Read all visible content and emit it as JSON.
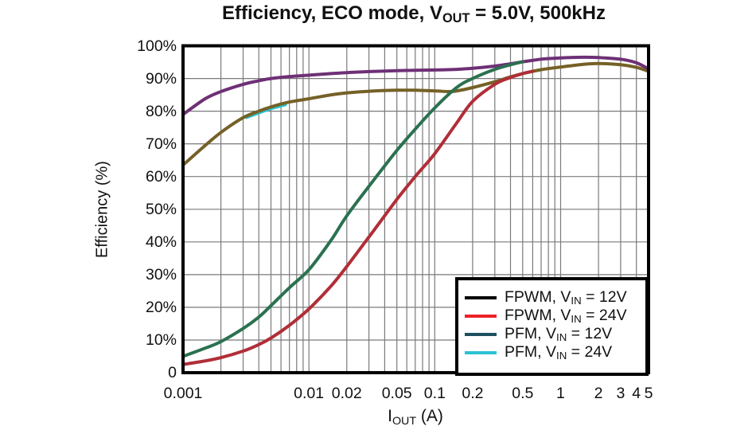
{
  "title": {
    "pre": "Efficiency, ECO mode, V",
    "sub": "OUT",
    "post": " = 5.0V, 500kHz"
  },
  "axes": {
    "x": {
      "label_pre": "I",
      "label_sub": "OUT",
      "label_post": " (A)",
      "scale": "log",
      "min": 0.001,
      "max": 5,
      "tick_labels": [
        {
          "value": 0.001,
          "label": "0.001"
        },
        {
          "value": 0.01,
          "label": "0.01"
        },
        {
          "value": 0.02,
          "label": "0.02"
        },
        {
          "value": 0.05,
          "label": "0.05"
        },
        {
          "value": 0.1,
          "label": "0.1"
        },
        {
          "value": 0.2,
          "label": "0.2"
        },
        {
          "value": 0.5,
          "label": "0.5"
        },
        {
          "value": 1,
          "label": "1"
        },
        {
          "value": 2,
          "label": "2"
        },
        {
          "value": 3,
          "label": "3"
        },
        {
          "value": 4,
          "label": "4"
        },
        {
          "value": 5,
          "label": "5"
        }
      ],
      "gridlines": [
        0.002,
        0.003,
        0.004,
        0.005,
        0.006,
        0.007,
        0.008,
        0.009,
        0.01,
        0.02,
        0.03,
        0.04,
        0.05,
        0.06,
        0.07,
        0.08,
        0.09,
        0.1,
        0.2,
        0.3,
        0.4,
        0.5,
        0.6,
        0.7,
        0.8,
        0.9,
        1,
        2,
        3,
        4
      ]
    },
    "y": {
      "label": "Efficiency (%)",
      "min": 0,
      "max": 100,
      "tick_labels": [
        {
          "value": 100,
          "label": "100%"
        },
        {
          "value": 90,
          "label": "90%"
        },
        {
          "value": 80,
          "label": "80%"
        },
        {
          "value": 70,
          "label": "70%"
        },
        {
          "value": 60,
          "label": "60%"
        },
        {
          "value": 50,
          "label": "50%"
        },
        {
          "value": 40,
          "label": "40%"
        },
        {
          "value": 30,
          "label": "30%"
        },
        {
          "value": 20,
          "label": "20%"
        },
        {
          "value": 10,
          "label": "10%"
        },
        {
          "value": 0,
          "label": "0"
        }
      ],
      "gridlines": [
        10,
        20,
        30,
        40,
        50,
        60,
        70,
        80,
        90
      ]
    }
  },
  "legend": {
    "items": [
      {
        "color": "#000000",
        "pre": "FPWM, V",
        "sub": "IN",
        "post": " = 12V"
      },
      {
        "color": "#EC2227",
        "pre": "FPWM, V",
        "sub": "IN",
        "post": " = 24V"
      },
      {
        "color": "#1D4F5E",
        "pre": "PFM, V",
        "sub": "IN",
        "post": " = 12V"
      },
      {
        "color": "#2AC2D4",
        "pre": "PFM, V",
        "sub": "IN",
        "post": " = 24V"
      }
    ]
  },
  "colors": {
    "grid": "#7a7a7a",
    "frame": "#000000",
    "text": "#111111"
  },
  "chart_data": {
    "type": "line",
    "title": "Efficiency, ECO mode, VOUT = 5.0V, 500kHz",
    "xlabel": "IOUT (A)",
    "ylabel": "Efficiency (%)",
    "x_scale": "log",
    "xlim": [
      0.001,
      5
    ],
    "ylim": [
      0,
      100
    ],
    "grid": true,
    "legend_position": "lower right",
    "series": [
      {
        "name": "FPWM, VIN = 12V",
        "legend_color": "#000000",
        "plot_color": "#2B7150",
        "z": 4,
        "points": [
          [
            0.001,
            5
          ],
          [
            0.0015,
            7.5
          ],
          [
            0.002,
            9.5
          ],
          [
            0.003,
            13.5
          ],
          [
            0.004,
            17
          ],
          [
            0.005,
            20.5
          ],
          [
            0.007,
            26
          ],
          [
            0.01,
            31.5
          ],
          [
            0.015,
            40.5
          ],
          [
            0.02,
            48
          ],
          [
            0.03,
            57
          ],
          [
            0.05,
            68
          ],
          [
            0.07,
            74.5
          ],
          [
            0.1,
            81
          ],
          [
            0.15,
            87.3
          ],
          [
            0.2,
            90
          ],
          [
            0.3,
            92.8
          ],
          [
            0.4,
            94.2
          ],
          [
            0.5,
            95.1
          ]
        ]
      },
      {
        "name": "FPWM, VIN = 24V",
        "legend_color": "#EC2227",
        "plot_color": "#B02E38",
        "z": 5,
        "points": [
          [
            0.001,
            2.5
          ],
          [
            0.0015,
            3.6
          ],
          [
            0.002,
            4.6
          ],
          [
            0.003,
            6.6
          ],
          [
            0.004,
            8.6
          ],
          [
            0.005,
            10.6
          ],
          [
            0.007,
            14.5
          ],
          [
            0.01,
            19.5
          ],
          [
            0.015,
            26.5
          ],
          [
            0.02,
            32.5
          ],
          [
            0.03,
            41.5
          ],
          [
            0.05,
            53
          ],
          [
            0.07,
            60
          ],
          [
            0.1,
            67
          ],
          [
            0.15,
            76.5
          ],
          [
            0.2,
            83
          ],
          [
            0.3,
            88.2
          ],
          [
            0.4,
            90.3
          ],
          [
            0.5,
            91.5
          ],
          [
            0.6,
            92.2
          ]
        ]
      },
      {
        "name": "PFM, VIN = 12V",
        "legend_color": "#1D4F5E",
        "plot_color": "#6E3076",
        "z": 3,
        "points": [
          [
            0.001,
            79
          ],
          [
            0.0015,
            83.8
          ],
          [
            0.002,
            86
          ],
          [
            0.003,
            88.2
          ],
          [
            0.004,
            89.3
          ],
          [
            0.005,
            90
          ],
          [
            0.007,
            90.6
          ],
          [
            0.01,
            91
          ],
          [
            0.015,
            91.5
          ],
          [
            0.02,
            91.8
          ],
          [
            0.03,
            92.1
          ],
          [
            0.05,
            92.4
          ],
          [
            0.07,
            92.5
          ],
          [
            0.1,
            92.6
          ],
          [
            0.15,
            92.8
          ],
          [
            0.2,
            93.1
          ],
          [
            0.3,
            93.8
          ],
          [
            0.4,
            94.5
          ],
          [
            0.5,
            95.1
          ],
          [
            0.7,
            95.9
          ],
          [
            1,
            96.3
          ],
          [
            1.5,
            96.5
          ],
          [
            2,
            96.4
          ],
          [
            3,
            95.9
          ],
          [
            4,
            94.8
          ],
          [
            5,
            92.9
          ]
        ]
      },
      {
        "name": "PFM, VIN = 24V",
        "legend_color": "#2AC2D4",
        "plot_color": "#756126",
        "z": 2,
        "points": [
          [
            0.001,
            63.5
          ],
          [
            0.0015,
            69.5
          ],
          [
            0.002,
            73.5
          ],
          [
            0.003,
            78
          ],
          [
            0.004,
            80
          ],
          [
            0.005,
            81.3
          ],
          [
            0.007,
            82.8
          ],
          [
            0.01,
            83.8
          ],
          [
            0.015,
            85
          ],
          [
            0.02,
            85.6
          ],
          [
            0.03,
            86.1
          ],
          [
            0.05,
            86.4
          ],
          [
            0.07,
            86.4
          ],
          [
            0.1,
            86.2
          ],
          [
            0.13,
            86
          ],
          [
            0.15,
            86.2
          ],
          [
            0.2,
            87.2
          ],
          [
            0.3,
            89
          ],
          [
            0.4,
            90.5
          ],
          [
            0.5,
            91.5
          ],
          [
            0.7,
            92.7
          ],
          [
            1,
            93.5
          ],
          [
            1.5,
            94.3
          ],
          [
            2,
            94.6
          ],
          [
            3,
            94.2
          ],
          [
            4,
            93.4
          ],
          [
            5,
            92.2
          ]
        ],
        "fringe_color": "#2AC2D4",
        "fringe_points": [
          [
            0.0032,
            78.1
          ],
          [
            0.004,
            79.5
          ],
          [
            0.005,
            80.8
          ],
          [
            0.0065,
            82.0
          ]
        ]
      }
    ]
  }
}
